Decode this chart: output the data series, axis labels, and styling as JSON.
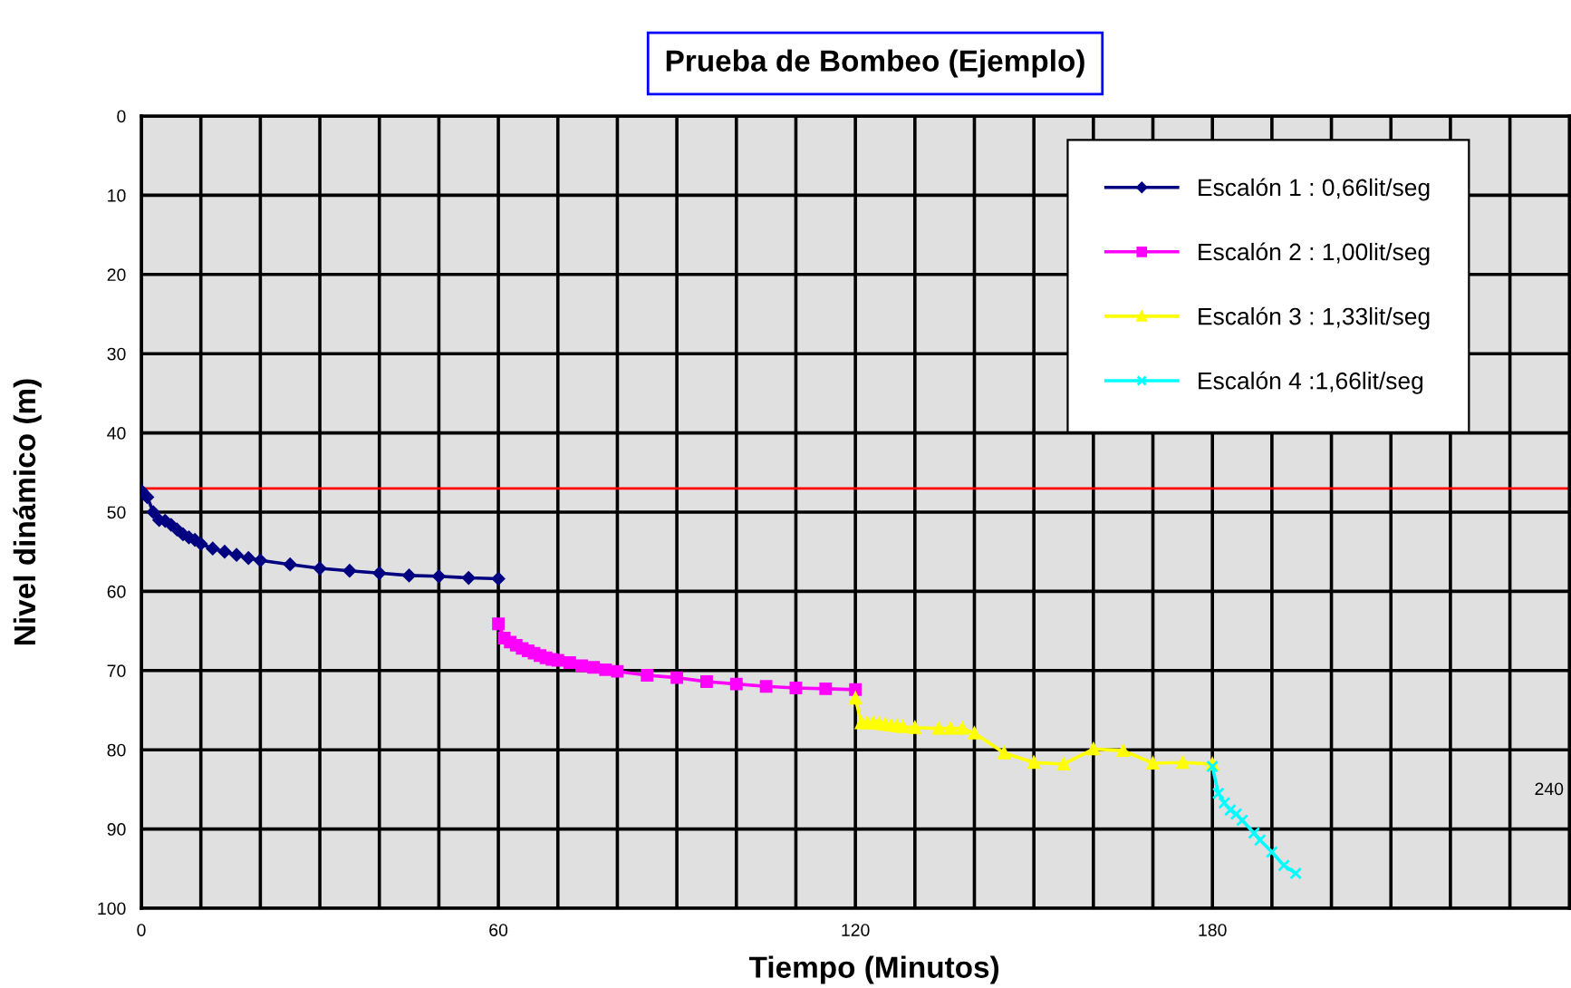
{
  "chart_data": {
    "type": "line",
    "title": "Prueba de Bombeo (Ejemplo)",
    "xlabel": "Tiempo (Minutos)",
    "ylabel": "Nivel dinámico (m)",
    "xlim": [
      0,
      240
    ],
    "ylim": [
      100,
      0
    ],
    "xticks": [
      0,
      {
        "value": 10,
        "label": null
      },
      {
        "value": 20,
        "label": null
      },
      {
        "value": 30,
        "label": null
      },
      {
        "value": 40,
        "label": null
      },
      {
        "value": 50,
        "label": null
      },
      60,
      {
        "value": 70,
        "label": null
      },
      {
        "value": 80,
        "label": null
      },
      {
        "value": 90,
        "label": null
      },
      {
        "value": 100,
        "label": null
      },
      {
        "value": 110,
        "label": null
      },
      120,
      {
        "value": 130,
        "label": null
      },
      {
        "value": 140,
        "label": null
      },
      {
        "value": 150,
        "label": null
      },
      {
        "value": 160,
        "label": null
      },
      {
        "value": 170,
        "label": null
      },
      180,
      {
        "value": 190,
        "label": null
      },
      {
        "value": 200,
        "label": null
      },
      {
        "value": 210,
        "label": null
      },
      {
        "value": 220,
        "label": null
      },
      {
        "value": 230,
        "label": null
      }
    ],
    "yticks": [
      0,
      10,
      20,
      30,
      40,
      50,
      60,
      70,
      80,
      90,
      100
    ],
    "grid": true,
    "legend": "top right",
    "series": [
      {
        "name": "Escalón 1 : 0,66lit/seg",
        "color": "#000080",
        "marker": "diamond",
        "x": [
          0,
          1,
          2,
          3,
          4,
          5,
          6,
          7,
          8,
          9,
          10,
          12,
          14,
          16,
          18,
          20,
          25,
          30,
          35,
          40,
          45,
          50,
          55,
          60
        ],
        "values": [
          47.3,
          48.1,
          50.0,
          51.0,
          51.1,
          51.6,
          52.2,
          52.8,
          53.2,
          53.5,
          54.0,
          54.6,
          55.0,
          55.4,
          55.8,
          56.1,
          56.6,
          57.1,
          57.4,
          57.7,
          58.0,
          58.1,
          58.3,
          58.4
        ]
      },
      {
        "name": "Escalón 2 : 1,00lit/seg",
        "color": "#ff00ff",
        "marker": "square",
        "x": [
          60,
          61,
          62,
          63,
          64,
          65,
          66,
          67,
          68,
          69,
          70,
          72,
          74,
          76,
          78,
          80,
          85,
          90,
          95,
          100,
          105,
          110,
          115,
          120
        ],
        "values": [
          64.1,
          65.9,
          66.4,
          66.8,
          67.2,
          67.5,
          67.8,
          68.1,
          68.4,
          68.6,
          68.7,
          69.0,
          69.4,
          69.6,
          69.9,
          70.1,
          70.6,
          70.9,
          71.4,
          71.7,
          72.0,
          72.2,
          72.3,
          72.4
        ]
      },
      {
        "name": "Escalón 3 : 1,33lit/seg",
        "color": "#ffff00",
        "marker": "triangle",
        "x": [
          120,
          121,
          122,
          123,
          124,
          125,
          126,
          127,
          128,
          130,
          134,
          136,
          138,
          140,
          145,
          150,
          155,
          160,
          165,
          170,
          175,
          180
        ],
        "values": [
          73.5,
          76.6,
          76.6,
          76.6,
          76.7,
          76.8,
          76.9,
          77.0,
          77.1,
          77.2,
          77.3,
          77.3,
          77.3,
          77.9,
          80.4,
          81.6,
          81.8,
          79.9,
          80.1,
          81.7,
          81.6,
          81.8
        ]
      },
      {
        "name": "Escalón 4 :1,66lit/seg",
        "color": "#00ffff",
        "marker": "cross",
        "x": [
          180,
          181,
          182,
          183,
          184,
          185,
          187,
          188,
          190,
          192,
          194
        ],
        "values": [
          82.1,
          85.5,
          86.7,
          87.6,
          88.1,
          88.9,
          90.5,
          91.4,
          92.9,
          94.6,
          95.6
        ]
      }
    ],
    "ref_lines": [
      {
        "axis": "y",
        "value": 47,
        "color": "#ff0000"
      }
    ],
    "annotations": [
      "240"
    ]
  }
}
